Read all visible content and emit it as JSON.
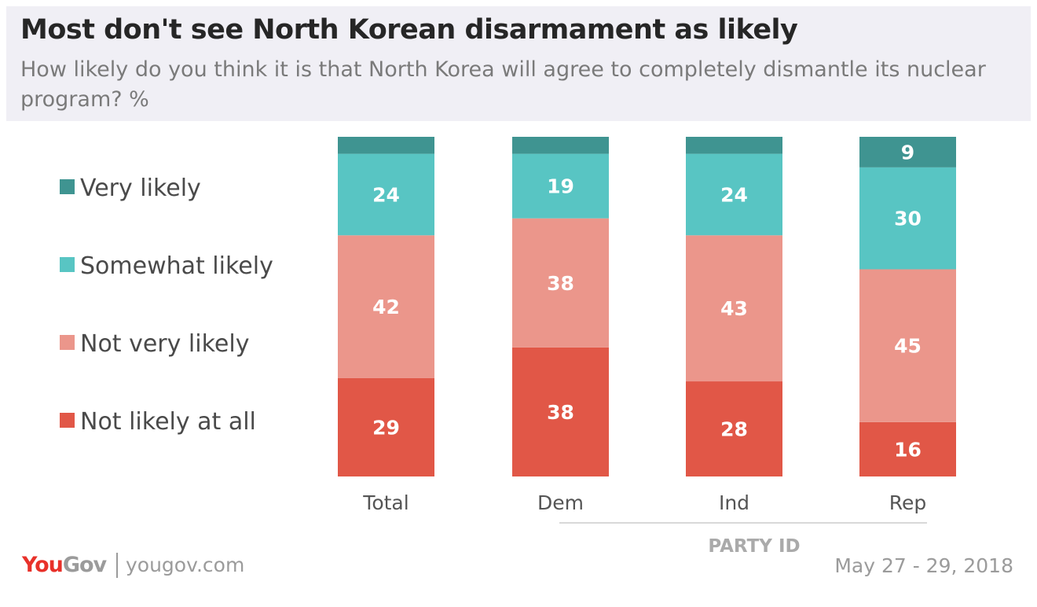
{
  "chart_data": {
    "type": "bar",
    "stacked": true,
    "title": "Most don't see North Korean disarmament as likely",
    "subtitle": "How likely do you think it is that North Korea will agree to completely dismantle its nuclear program? %",
    "categories": [
      "Total",
      "Dem",
      "Ind",
      "Rep"
    ],
    "group_label": "PARTY ID",
    "ylim": [
      0,
      100
    ],
    "legend_position": "left",
    "series": [
      {
        "name": "Very likely",
        "color": "#3f9491",
        "values": [
          5,
          5,
          5,
          9
        ],
        "labels": [
          "",
          "",
          "",
          "9"
        ]
      },
      {
        "name": "Somewhat likely",
        "color": "#58c5c3",
        "values": [
          24,
          19,
          24,
          30
        ],
        "labels": [
          "24",
          "19",
          "24",
          "30"
        ]
      },
      {
        "name": "Not very likely",
        "color": "#eb968b",
        "values": [
          42,
          38,
          43,
          45
        ],
        "labels": [
          "42",
          "38",
          "43",
          "45"
        ]
      },
      {
        "name": "Not likely at all",
        "color": "#e15747",
        "values": [
          29,
          38,
          28,
          16
        ],
        "labels": [
          "29",
          "38",
          "28",
          "16"
        ]
      }
    ]
  },
  "footer": {
    "logo_you": "You",
    "logo_gov": "Gov",
    "site": "yougov.com",
    "date": "May 27 - 29, 2018"
  }
}
